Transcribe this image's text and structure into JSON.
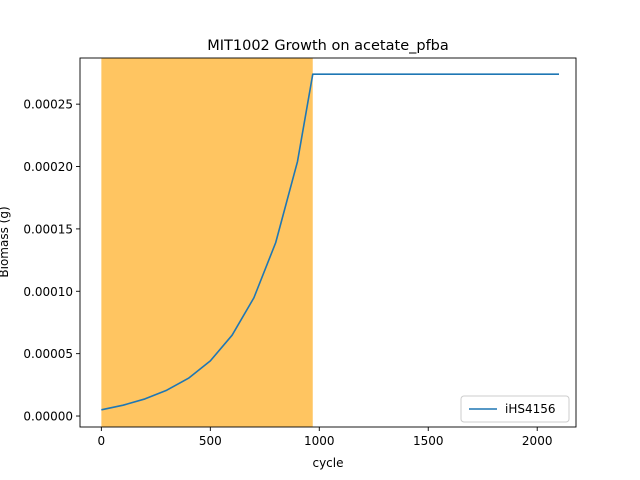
{
  "chart_data": {
    "type": "line",
    "title": "MIT1002 Growth on acetate_pfba",
    "xlabel": "cycle",
    "ylabel": "Biomass (g)",
    "xlim": [
      -98,
      2178
    ],
    "ylim": [
      -8.8e-06,
      0.000287
    ],
    "x_ticks": [
      {
        "value": 0,
        "label": "0"
      },
      {
        "value": 500,
        "label": "500"
      },
      {
        "value": 1000,
        "label": "1000"
      },
      {
        "value": 1500,
        "label": "1500"
      },
      {
        "value": 2000,
        "label": "2000"
      }
    ],
    "y_ticks": [
      {
        "value": 0,
        "label": "0.00000"
      },
      {
        "value": 5e-05,
        "label": "0.00005"
      },
      {
        "value": 0.0001,
        "label": "0.00010"
      },
      {
        "value": 0.00015,
        "label": "0.00015"
      },
      {
        "value": 0.0002,
        "label": "0.00020"
      },
      {
        "value": 0.00025,
        "label": "0.00025"
      }
    ],
    "shaded_region": {
      "x_start": 0,
      "x_end": 970,
      "color": "#ffc561"
    },
    "series": [
      {
        "name": "iHS4156",
        "color": "#1f77b4",
        "x": [
          0,
          100,
          200,
          300,
          400,
          500,
          600,
          700,
          800,
          900,
          970,
          1000,
          1500,
          2000,
          2100
        ],
        "y": [
          5e-06,
          8.7e-06,
          1.37e-05,
          2.07e-05,
          3.03e-05,
          4.42e-05,
          6.48e-05,
          9.48e-05,
          0.000139,
          0.000204,
          0.000274,
          0.000274,
          0.000274,
          0.000274,
          0.000274
        ]
      }
    ],
    "grid": false,
    "legend": "bottom-right"
  }
}
